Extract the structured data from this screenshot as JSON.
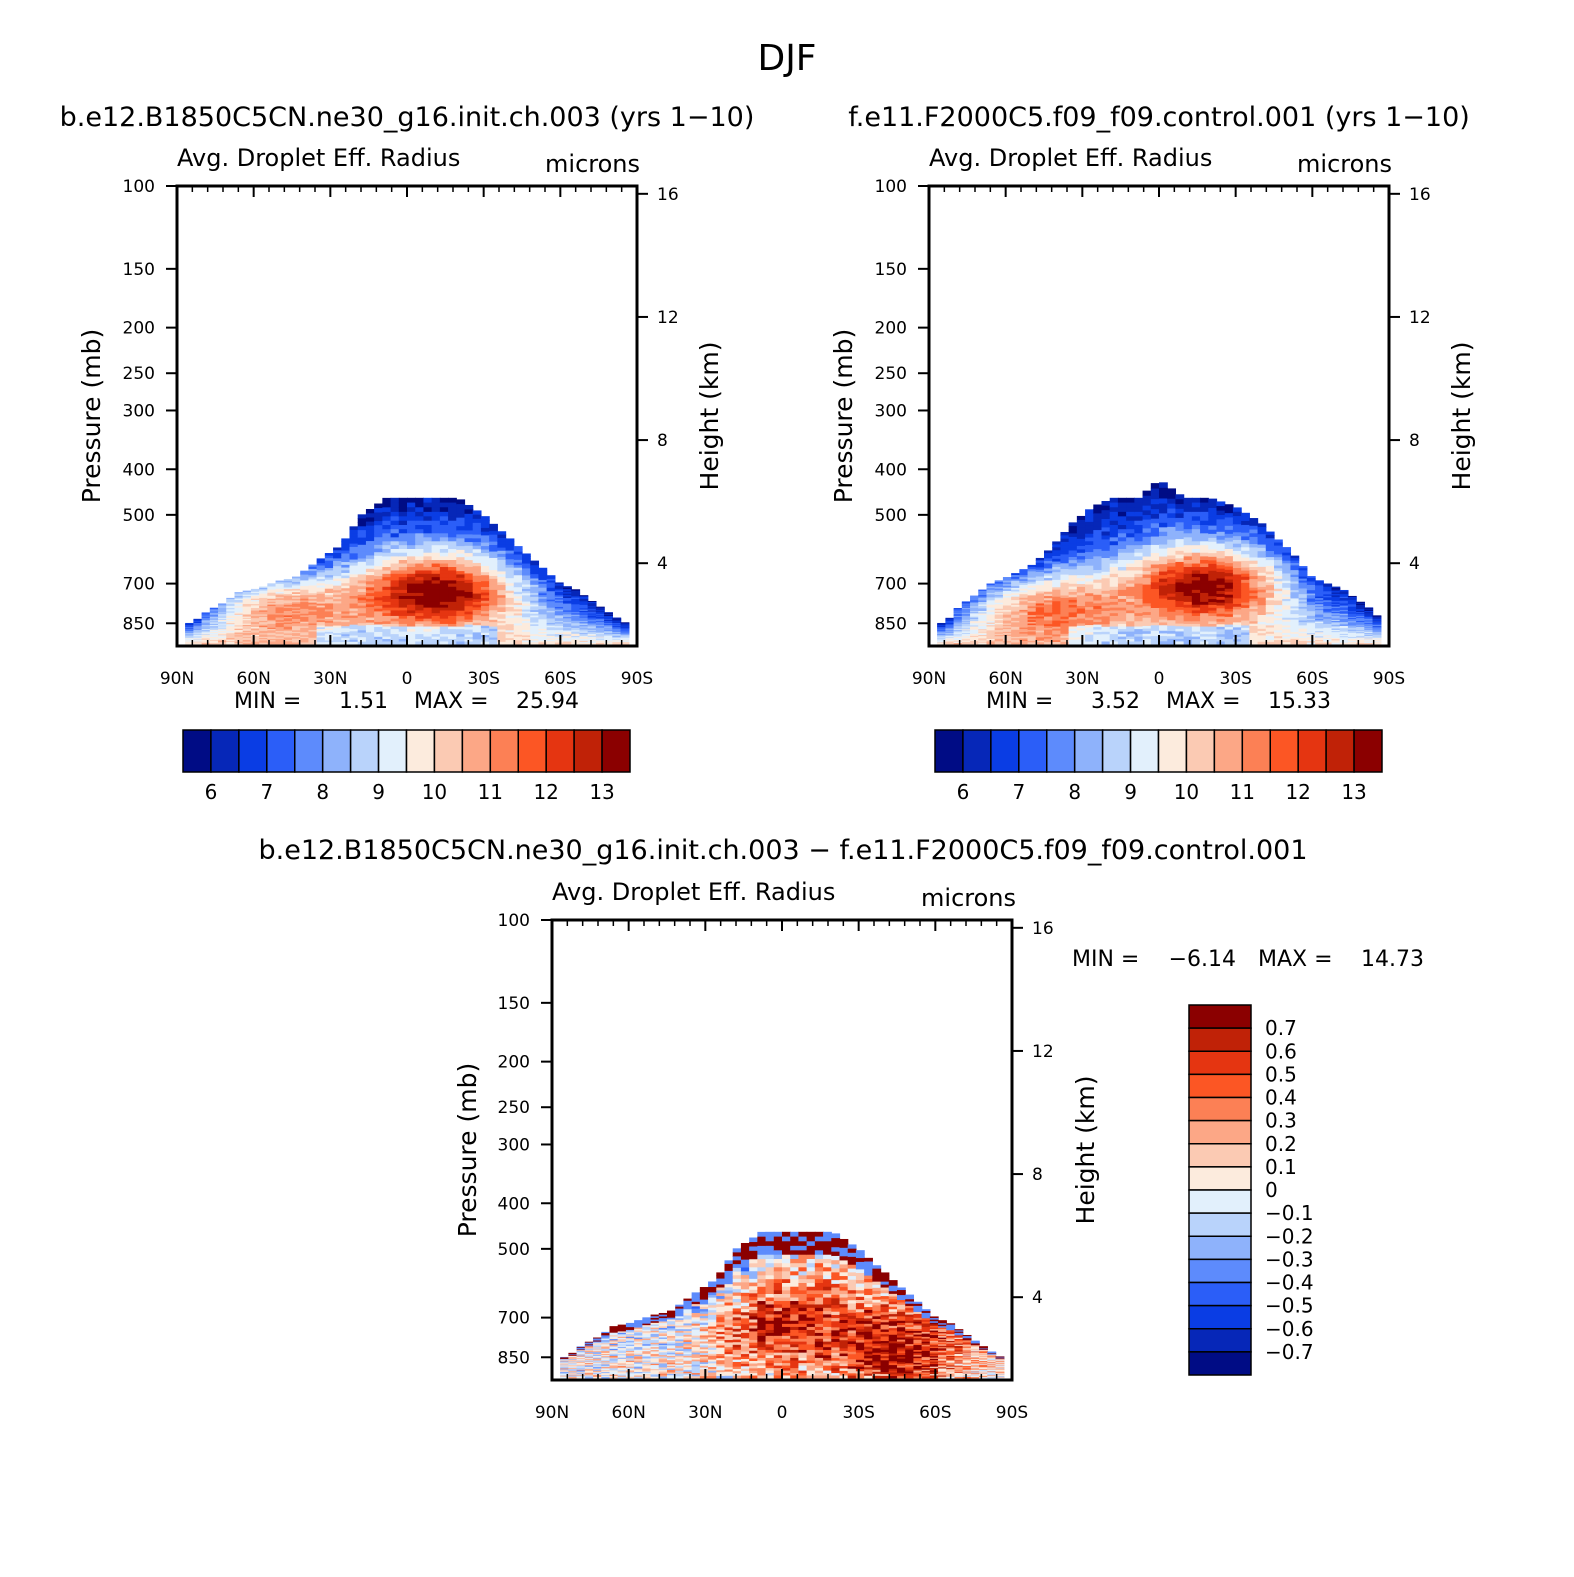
{
  "figure_title": "DJF",
  "colors": {
    "red_scale": [
      "#fcebdd",
      "#fbcab3",
      "#fca786",
      "#fc8055",
      "#fc5624",
      "#e53511",
      "#c02207",
      "#8b0000"
    ],
    "blue_scale": [
      "#e2f0fc",
      "#b9d3fb",
      "#8eb2fb",
      "#5d8bfc",
      "#2b5ef8",
      "#0a3de4",
      "#0627b8",
      "#000c85"
    ],
    "white": "#ffffff"
  },
  "chart_data": [
    {
      "type": "heatmap",
      "name": "case1",
      "title": "b.e12.B1850C5CN.ne30_g16.init.ch.003 (yrs 1−10)",
      "subtitle_left": "Avg. Droplet Eff. Radius",
      "subtitle_right": "microns",
      "xlabel": "",
      "ylabel": "Pressure (mb)",
      "ylabel_right": "Height (km)",
      "x_ticks": [
        "90N",
        "60N",
        "30N",
        "0",
        "30S",
        "60S",
        "90S"
      ],
      "y_ticks": [
        "100",
        "150",
        "200",
        "250",
        "300",
        "400",
        "500",
        "700",
        "850"
      ],
      "y_right_ticks": [
        "16",
        "12",
        "8",
        "4"
      ],
      "min_label": "MIN =",
      "min_value": "1.51",
      "max_label": "MAX =",
      "max_value": "25.94",
      "colorbar": {
        "orientation": "horizontal",
        "labels": [
          "6",
          "7",
          "8",
          "9",
          "10",
          "11",
          "12",
          "13"
        ]
      },
      "field": {
        "top_pressure_mb": 450,
        "envelope_x_deg": [
          -88,
          -83,
          -78,
          -72,
          -66,
          -60,
          -50,
          -44,
          -34,
          -26,
          -18,
          -8,
          0,
          10,
          20,
          30,
          40,
          46,
          52,
          60,
          66,
          72,
          78,
          84,
          88
        ],
        "envelope_top_mb": [
          860,
          840,
          800,
          770,
          730,
          720,
          690,
          680,
          620,
          580,
          500,
          460,
          460,
          460,
          460,
          500,
          560,
          600,
          640,
          700,
          720,
          760,
          800,
          840,
          860
        ],
        "cores": [
          {
            "lat": 12,
            "p_mb": 720,
            "value": 13.4
          },
          {
            "lat": -50,
            "p_mb": 770,
            "value": 12.0
          }
        ],
        "shallow_pattern": "red-centred"
      }
    },
    {
      "type": "heatmap",
      "name": "case2",
      "title": "f.e11.F2000C5.f09_f09.control.001 (yrs 1−10)",
      "subtitle_left": "Avg. Droplet Eff. Radius",
      "subtitle_right": "microns",
      "xlabel": "",
      "ylabel": "Pressure (mb)",
      "ylabel_right": "Height (km)",
      "x_ticks": [
        "90N",
        "60N",
        "30N",
        "0",
        "30S",
        "60S",
        "90S"
      ],
      "y_ticks": [
        "100",
        "150",
        "200",
        "250",
        "300",
        "400",
        "500",
        "700",
        "850"
      ],
      "y_right_ticks": [
        "16",
        "12",
        "8",
        "4"
      ],
      "min_label": "MIN =",
      "min_value": "3.52",
      "max_label": "MAX =",
      "max_value": "15.33",
      "colorbar": {
        "orientation": "horizontal",
        "labels": [
          "6",
          "7",
          "8",
          "9",
          "10",
          "11",
          "12",
          "13"
        ]
      },
      "field": {
        "top_pressure_mb": 400,
        "envelope_x_deg": [
          -88,
          -83,
          -78,
          -72,
          -66,
          -60,
          -50,
          -44,
          -34,
          -26,
          -18,
          -8,
          0,
          10,
          20,
          30,
          40,
          46,
          52,
          60,
          66,
          72,
          78,
          84,
          88
        ],
        "envelope_top_mb": [
          860,
          840,
          780,
          740,
          700,
          680,
          640,
          600,
          520,
          480,
          460,
          460,
          420,
          460,
          460,
          480,
          520,
          560,
          600,
          680,
          700,
          720,
          760,
          800,
          860
        ],
        "cores": [
          {
            "lat": 18,
            "p_mb": 700,
            "value": 13.4
          },
          {
            "lat": -45,
            "p_mb": 780,
            "value": 11.8
          }
        ],
        "shallow_pattern": "red-centred"
      }
    },
    {
      "type": "heatmap",
      "name": "difference",
      "title": "b.e12.B1850C5CN.ne30_g16.init.ch.003 − f.e11.F2000C5.f09_f09.control.001",
      "subtitle_left": "Avg. Droplet Eff. Radius",
      "subtitle_right": "microns",
      "xlabel": "",
      "ylabel": "Pressure (mb)",
      "ylabel_right": "Height (km)",
      "x_ticks": [
        "90N",
        "60N",
        "30N",
        "0",
        "30S",
        "60S",
        "90S"
      ],
      "y_ticks": [
        "100",
        "150",
        "200",
        "250",
        "300",
        "400",
        "500",
        "700",
        "850"
      ],
      "y_right_ticks": [
        "16",
        "12",
        "8",
        "4"
      ],
      "min_label": "MIN =",
      "min_value": "−6.14",
      "max_label": "MAX =",
      "max_value": "14.73",
      "colorbar": {
        "orientation": "vertical",
        "labels": [
          "0.7",
          "0.6",
          "0.5",
          "0.4",
          "0.3",
          "0.2",
          "0.1",
          "0",
          "−0.1",
          "−0.2",
          "−0.3",
          "−0.4",
          "−0.5",
          "−0.6",
          "−0.7"
        ]
      },
      "field": {
        "top_pressure_mb": 450,
        "envelope_x_deg": [
          -88,
          -83,
          -78,
          -72,
          -66,
          -60,
          -50,
          -44,
          -34,
          -26,
          -18,
          -8,
          0,
          10,
          20,
          30,
          40,
          46,
          52,
          60,
          66,
          72,
          78,
          84,
          88
        ],
        "envelope_top_mb": [
          860,
          840,
          800,
          770,
          730,
          720,
          690,
          680,
          620,
          580,
          500,
          460,
          460,
          460,
          460,
          500,
          560,
          600,
          640,
          700,
          720,
          760,
          800,
          840,
          860
        ],
        "cores": [
          {
            "lat": -5,
            "p_mb": 700,
            "value": 0.9
          },
          {
            "lat": 45,
            "p_mb": 820,
            "value": 0.9
          },
          {
            "lat": -28,
            "p_mb": 560,
            "value": -0.7
          }
        ],
        "shallow_pattern": "difference"
      }
    }
  ]
}
